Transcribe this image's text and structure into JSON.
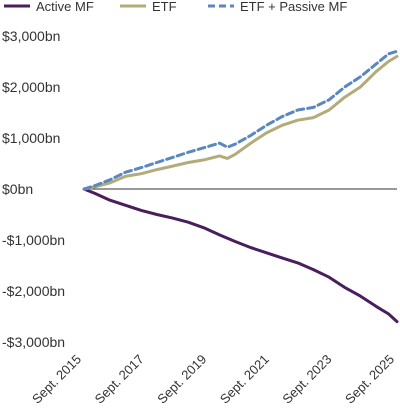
{
  "chart_data": {
    "type": "line",
    "title": "",
    "xlabel": "",
    "ylabel": "",
    "x_ticks": [
      "Sept. 2015",
      "Sept. 2017",
      "Sept. 2019",
      "Sept. 2021",
      "Sept. 2023",
      "Sept. 2025"
    ],
    "x_range": [
      2015.67,
      2025.67
    ],
    "y_ticks": [
      "$3,000bn",
      "$2,000bn",
      "$1,000bn",
      "$0bn",
      "-$1,000bn",
      "-$2,000bn",
      "-$3,000bn"
    ],
    "ylim": [
      -3000,
      3000
    ],
    "grid": false,
    "legend_position": "top",
    "series": [
      {
        "name": "Active MF",
        "color": "#4a1e5c",
        "style": "solid",
        "x": [
          2015.67,
          2016.0,
          2016.5,
          2017.0,
          2017.5,
          2018.0,
          2018.5,
          2019.0,
          2019.5,
          2020.0,
          2020.5,
          2021.0,
          2021.5,
          2022.0,
          2022.5,
          2023.0,
          2023.5,
          2024.0,
          2024.5,
          2025.0,
          2025.4,
          2025.67
        ],
        "y": [
          0,
          -80,
          -220,
          -320,
          -420,
          -500,
          -570,
          -650,
          -760,
          -900,
          -1030,
          -1150,
          -1250,
          -1350,
          -1450,
          -1580,
          -1730,
          -1930,
          -2100,
          -2300,
          -2450,
          -2600
        ]
      },
      {
        "name": "ETF",
        "color": "#b4ab7a",
        "style": "solid",
        "x": [
          2015.67,
          2016.0,
          2016.5,
          2017.0,
          2017.5,
          2018.0,
          2018.5,
          2019.0,
          2019.5,
          2020.0,
          2020.25,
          2020.5,
          2021.0,
          2021.5,
          2022.0,
          2022.5,
          2023.0,
          2023.5,
          2024.0,
          2024.5,
          2025.0,
          2025.4,
          2025.67
        ],
        "y": [
          0,
          40,
          120,
          250,
          300,
          380,
          450,
          520,
          570,
          650,
          600,
          680,
          900,
          1100,
          1250,
          1350,
          1400,
          1550,
          1800,
          2000,
          2300,
          2500,
          2600
        ]
      },
      {
        "name": "ETF + Passive MF",
        "color": "#5b87c1",
        "style": "dashed",
        "x": [
          2015.67,
          2016.0,
          2016.5,
          2017.0,
          2017.5,
          2018.0,
          2018.5,
          2019.0,
          2019.5,
          2020.0,
          2020.25,
          2020.5,
          2021.0,
          2021.5,
          2022.0,
          2022.5,
          2023.0,
          2023.5,
          2024.0,
          2024.5,
          2025.0,
          2025.4,
          2025.67
        ],
        "y": [
          0,
          60,
          180,
          330,
          420,
          520,
          620,
          720,
          810,
          900,
          820,
          880,
          1050,
          1250,
          1420,
          1550,
          1600,
          1750,
          2000,
          2200,
          2450,
          2650,
          2700
        ]
      }
    ]
  }
}
